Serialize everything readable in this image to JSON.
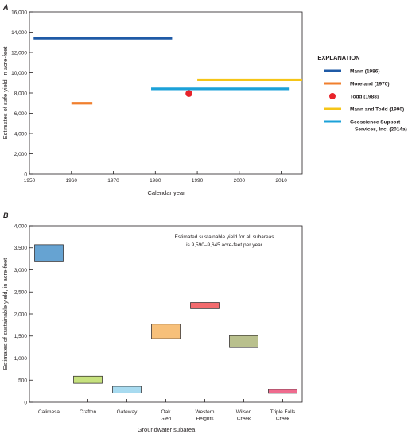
{
  "chart_data": [
    {
      "panel": "A",
      "type": "line",
      "xlabel": "Calendar year",
      "ylabel": "Estimates of safe yield, in acre-feet",
      "xlim": [
        1950,
        2015
      ],
      "ylim": [
        0,
        16000
      ],
      "xticks": [
        1950,
        1960,
        1970,
        1980,
        1990,
        2000,
        2010
      ],
      "xtick_labels": [
        "1950",
        "1960",
        "1970",
        "1980",
        "1990",
        "2000",
        "2010"
      ],
      "yticks": [
        0,
        2000,
        4000,
        6000,
        8000,
        10000,
        12000,
        14000,
        16000
      ],
      "ytick_labels": [
        "0",
        "2,000",
        "4,000",
        "6,000",
        "8,000",
        "10,000",
        "12,000",
        "14,000",
        "16,000"
      ],
      "grid": false,
      "legend_title": "EXPLANATION",
      "legend_position": "right",
      "series": [
        {
          "name": "Mann (1986)",
          "marker": "line",
          "color": "#1f5aa6",
          "x_start": 1951,
          "x_end": 1984,
          "y": 13400
        },
        {
          "name": "Moreland (1970)",
          "marker": "line",
          "color": "#f07f2e",
          "x_start": 1960,
          "x_end": 1965,
          "y": 7000
        },
        {
          "name": "Todd (1988)",
          "marker": "dot",
          "color": "#e8232a",
          "x": 1988,
          "y": 7950
        },
        {
          "name": "Mann and Todd (1990)",
          "marker": "line",
          "color": "#f5c518",
          "x_start": 1990,
          "x_end": 2015,
          "y": 9300
        },
        {
          "name": "Geoscience Support\nServices, Inc. (2014a)",
          "legend_lines": [
            "Geoscience Support",
            "Services, Inc. (2014a)"
          ],
          "marker": "line",
          "color": "#1ba1d8",
          "x_start": 1979,
          "x_end": 2012,
          "y": 8400
        }
      ]
    },
    {
      "panel": "B",
      "type": "bar",
      "xlabel": "Groundwater subarea",
      "ylabel": "Estimates of sustainable yield, in acre-feet",
      "ylim": [
        0,
        4000
      ],
      "yticks": [
        0,
        500,
        1000,
        1500,
        2000,
        2500,
        3000,
        3500,
        4000
      ],
      "ytick_labels": [
        "0",
        "500",
        "1,000",
        "1,500",
        "2,000",
        "2,500",
        "3,000",
        "3,500",
        "4,000"
      ],
      "grid": false,
      "annotation_lines": [
        "Estimated sustainable yield for all subareas",
        "is 9,590–9,645 acre-feet per year"
      ],
      "categories": [
        {
          "label_lines": [
            "Calimesa"
          ],
          "low": 3200,
          "high": 3570,
          "color": "#66a3d2"
        },
        {
          "label_lines": [
            "Crafton"
          ],
          "low": 430,
          "high": 590,
          "color": "#c6e17e"
        },
        {
          "label_lines": [
            "Gateway"
          ],
          "low": 210,
          "high": 360,
          "color": "#a8dbf0"
        },
        {
          "label_lines": [
            "Oak",
            "Glen"
          ],
          "low": 1440,
          "high": 1770,
          "color": "#f7c07a"
        },
        {
          "label_lines": [
            "Western",
            "Heights"
          ],
          "low": 2120,
          "high": 2260,
          "color": "#f26b6e"
        },
        {
          "label_lines": [
            "Wilson",
            "Creek"
          ],
          "low": 1240,
          "high": 1510,
          "color": "#b9c08d"
        },
        {
          "label_lines": [
            "Triple Falls",
            "Creek"
          ],
          "low": 200,
          "high": 290,
          "color": "#ef6b8e"
        }
      ]
    }
  ]
}
